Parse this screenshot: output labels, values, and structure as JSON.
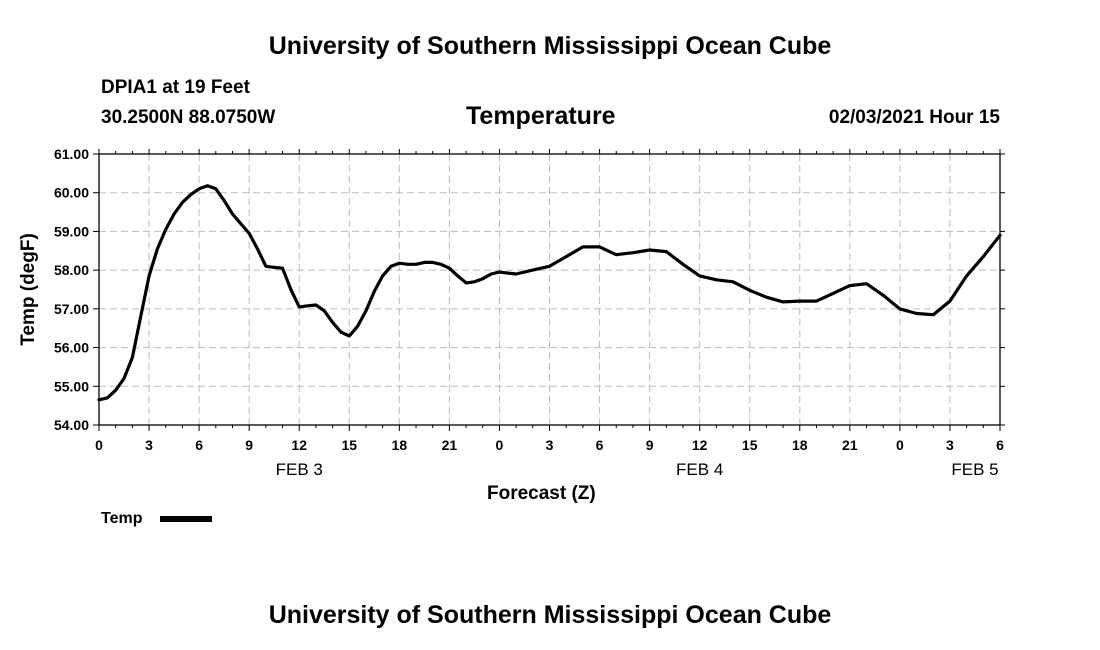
{
  "header": {
    "top_title": "University of Southern Mississippi Ocean Cube",
    "bottom_title": "University of Southern Mississippi Ocean Cube",
    "station": "DPIA1 at 19 Feet",
    "coords": "30.2500N 88.0750W",
    "datetime": "02/03/2021 Hour 15"
  },
  "chart_data": {
    "type": "line",
    "title": "Temperature",
    "xlabel": "Forecast (Z)",
    "ylabel": "Temp (degF)",
    "ylim": [
      54,
      61
    ],
    "xlim": [
      0,
      54
    ],
    "x_units": "hours since 2021-02-03 00Z",
    "y_ticks": [
      "54.00",
      "55.00",
      "56.00",
      "57.00",
      "58.00",
      "59.00",
      "60.00",
      "61.00"
    ],
    "x_ticks": [
      "0",
      "3",
      "6",
      "9",
      "12",
      "15",
      "18",
      "21",
      "0",
      "3",
      "6",
      "9",
      "12",
      "15",
      "18",
      "21",
      "0",
      "3",
      "6"
    ],
    "date_labels": [
      {
        "label": "FEB 3",
        "hour": 12
      },
      {
        "label": "FEB 4",
        "hour": 36
      },
      {
        "label": "FEB 5",
        "hour": 52.5
      }
    ],
    "grid": true,
    "legend": "bottom-left",
    "series": [
      {
        "name": "Temp",
        "color": "#000000",
        "x": [
          0,
          0.5,
          1,
          1.5,
          2,
          2.5,
          3,
          3.5,
          4,
          4.5,
          5,
          5.5,
          6,
          6.5,
          7,
          7.5,
          8,
          8.5,
          9,
          9.5,
          10,
          10.5,
          11,
          11.5,
          12,
          12.5,
          13,
          13.5,
          14,
          14.5,
          15,
          15.5,
          16,
          16.5,
          17,
          17.5,
          18,
          18.5,
          19,
          19.5,
          20,
          20.5,
          21,
          21.5,
          22,
          22.5,
          23,
          23.5,
          24,
          25,
          26,
          27,
          28,
          29,
          30,
          31,
          32,
          33,
          34,
          35,
          36,
          37,
          38,
          39,
          40,
          41,
          42,
          43,
          44,
          45,
          46,
          47,
          48,
          49,
          50,
          51,
          52,
          53,
          54
        ],
        "values": [
          54.65,
          54.7,
          54.9,
          55.2,
          55.75,
          56.8,
          57.85,
          58.55,
          59.05,
          59.45,
          59.75,
          59.95,
          60.1,
          60.18,
          60.1,
          59.8,
          59.45,
          59.2,
          58.95,
          58.55,
          58.1,
          58.07,
          58.05,
          57.5,
          57.05,
          57.08,
          57.1,
          56.95,
          56.65,
          56.4,
          56.3,
          56.55,
          56.95,
          57.45,
          57.85,
          58.1,
          58.18,
          58.15,
          58.15,
          58.2,
          58.2,
          58.15,
          58.05,
          57.85,
          57.67,
          57.7,
          57.78,
          57.9,
          57.95,
          57.9,
          58.0,
          58.1,
          58.35,
          58.6,
          58.6,
          58.4,
          58.45,
          58.52,
          58.48,
          58.15,
          57.85,
          57.75,
          57.7,
          57.48,
          57.3,
          57.18,
          57.2,
          57.2,
          57.4,
          57.6,
          57.65,
          57.35,
          57.0,
          56.88,
          56.85,
          57.2,
          57.85,
          58.35,
          58.9
        ]
      }
    ]
  }
}
